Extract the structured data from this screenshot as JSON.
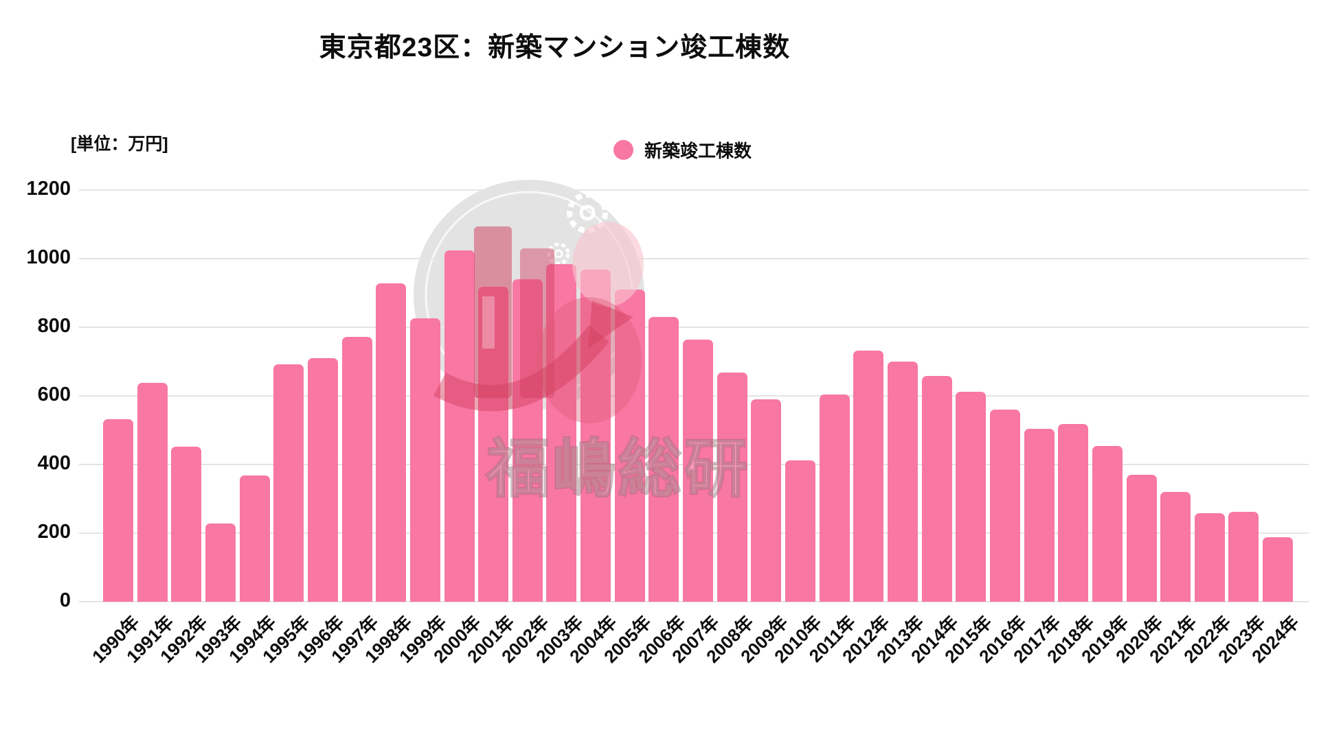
{
  "title": "東京都23区：新築マンション竣工棟数",
  "unit_label": "[単位：万円]",
  "legend": {
    "label": "新築竣工棟数",
    "marker_color": "#F877A3"
  },
  "watermark": {
    "text": "福嶋総研"
  },
  "chart_data": {
    "type": "bar",
    "title": "東京都23区：新築マンション竣工棟数",
    "unit": "万円",
    "series_name": "新築竣工棟数",
    "categories": [
      "1990年",
      "1991年",
      "1992年",
      "1993年",
      "1994年",
      "1995年",
      "1996年",
      "1997年",
      "1998年",
      "1999年",
      "2000年",
      "2001年",
      "2002年",
      "2003年",
      "2004年",
      "2005年",
      "2006年",
      "2007年",
      "2008年",
      "2009年",
      "2010年",
      "2011年",
      "2012年",
      "2013年",
      "2014年",
      "2015年",
      "2016年",
      "2017年",
      "2018年",
      "2019年",
      "2020年",
      "2021年",
      "2022年",
      "2023年",
      "2024年"
    ],
    "values": [
      533,
      638,
      452,
      228,
      368,
      692,
      710,
      772,
      928,
      827,
      1025,
      918,
      940,
      985,
      968,
      910,
      830,
      765,
      668,
      590,
      413,
      605,
      732,
      700,
      658,
      613,
      560,
      505,
      518,
      455,
      370,
      320,
      258,
      262,
      188
    ],
    "ylim": [
      0,
      1200
    ],
    "y_ticks": [
      0,
      200,
      400,
      600,
      800,
      1000,
      1200
    ],
    "bar_color": "#F877A3",
    "grid": true,
    "legend_position": "top-center",
    "x_tick_rotation_deg": 45
  }
}
